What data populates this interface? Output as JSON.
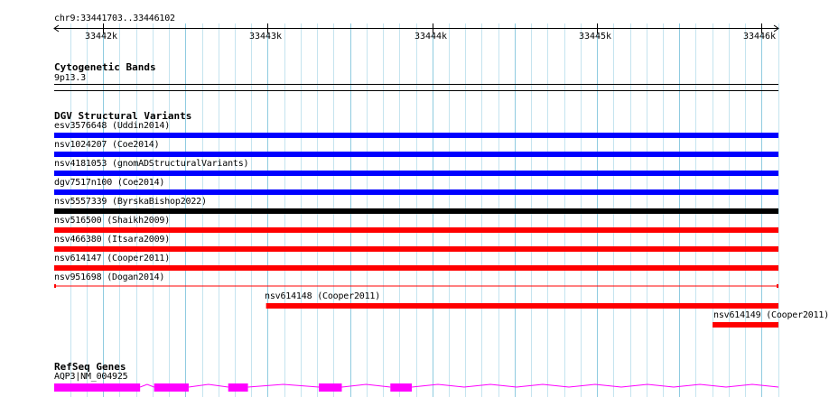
{
  "region": {
    "label": "chr9:33441703..33446102",
    "start": 33441703,
    "end": 33446102
  },
  "ruler": {
    "ticks": [
      {
        "pos": 33442000,
        "label": "33442k"
      },
      {
        "pos": 33443000,
        "label": "33443k"
      },
      {
        "pos": 33444000,
        "label": "33444k"
      },
      {
        "pos": 33445000,
        "label": "33445k"
      },
      {
        "pos": 33446000,
        "label": "33446k"
      }
    ]
  },
  "tracks": {
    "cytoband": {
      "title": "Cytogenetic Bands",
      "band_label": "9p13.3"
    },
    "dgv": {
      "title": "DGV Structural Variants",
      "features": [
        {
          "label": "esv3576648 (Uddin2014)",
          "color": "#0000ff",
          "start": 33441703,
          "end": 33446102
        },
        {
          "label": "nsv1024207 (Coe2014)",
          "color": "#0000ff",
          "start": 33441703,
          "end": 33446102
        },
        {
          "label": "nsv4181053 (gnomADStructuralVariants)",
          "color": "#0000ff",
          "start": 33441703,
          "end": 33446102
        },
        {
          "label": "dgv7517n100 (Coe2014)",
          "color": "#0000ff",
          "start": 33441703,
          "end": 33446102
        },
        {
          "label": "nsv5557339 (ByrskaBishop2022)",
          "color": "#000000",
          "start": 33441703,
          "end": 33446102
        },
        {
          "label": "nsv516500 (Shaikh2009)",
          "color": "#ff0000",
          "start": 33441703,
          "end": 33446102
        },
        {
          "label": "nsv466380 (Itsara2009)",
          "color": "#ff0000",
          "start": 33441703,
          "end": 33446102
        },
        {
          "label": "nsv614147 (Cooper2011)",
          "color": "#ff0000",
          "start": 33441703,
          "end": 33446102
        },
        {
          "label": "nsv951698 (Dogan2014)",
          "color": "#ff0000",
          "start": 33441703,
          "end": 33446102,
          "thin": true
        },
        {
          "label": "nsv614148 (Cooper2011)",
          "color": "#ff0000",
          "start": 33442990,
          "end": 33446102
        },
        {
          "label": "nsv614149 (Cooper2011)",
          "color": "#ff0000",
          "start": 33445702,
          "end": 33446102
        }
      ]
    },
    "refseq": {
      "title": "RefSeq Genes",
      "gene_label": "AQP3|NM_004925",
      "color": "#ff00ff",
      "start": 33441703,
      "end": 33446102,
      "exons": [
        {
          "start": 33441703,
          "end": 33442225
        },
        {
          "start": 33442310,
          "end": 33442520
        },
        {
          "start": 33442760,
          "end": 33442880
        },
        {
          "start": 33443310,
          "end": 33443450
        },
        {
          "start": 33443745,
          "end": 33443875
        }
      ]
    }
  }
}
